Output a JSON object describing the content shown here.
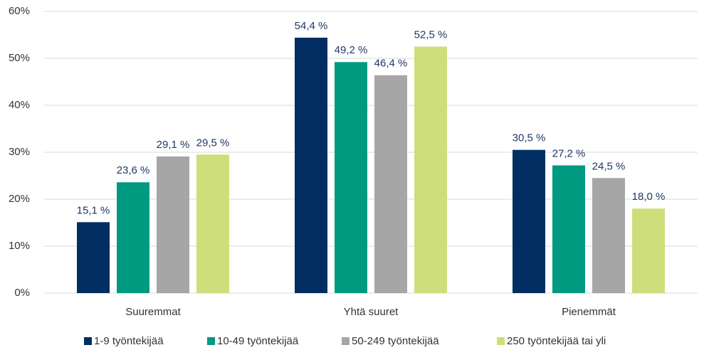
{
  "chart_data": {
    "type": "bar",
    "categories": [
      "Suuremmat",
      "Yhtä suuret",
      "Pienemmät"
    ],
    "series": [
      {
        "name": "1-9 työntekijää",
        "color": "#002d62",
        "values": [
          15.1,
          54.4,
          30.5
        ],
        "value_labels": [
          "15,1 %",
          "54,4 %",
          "30,5 %"
        ]
      },
      {
        "name": "10-49 työntekijää",
        "color": "#009a80",
        "values": [
          23.6,
          49.2,
          27.2
        ],
        "value_labels": [
          "23,6 %",
          "49,2 %",
          "27,2 %"
        ]
      },
      {
        "name": "50-249 työntekijää",
        "color": "#a6a6a6",
        "values": [
          29.1,
          46.4,
          24.5
        ],
        "value_labels": [
          "29,1 %",
          "46,4 %",
          "24,5 %"
        ]
      },
      {
        "name": "250 työntekijää tai yli",
        "color": "#cede7a",
        "values": [
          29.5,
          52.5,
          18.0
        ],
        "value_labels": [
          "29,5 %",
          "52,5 %",
          "18,0 %"
        ]
      }
    ],
    "ylim": [
      0,
      60
    ],
    "yticks": [
      {
        "value": 0,
        "label": "0%"
      },
      {
        "value": 10,
        "label": "10%"
      },
      {
        "value": 20,
        "label": "20%"
      },
      {
        "value": 30,
        "label": "30%"
      },
      {
        "value": 40,
        "label": "40%"
      },
      {
        "value": 50,
        "label": "50%"
      },
      {
        "value": 60,
        "label": "60%"
      }
    ],
    "grid": true,
    "legend": "bottom"
  }
}
